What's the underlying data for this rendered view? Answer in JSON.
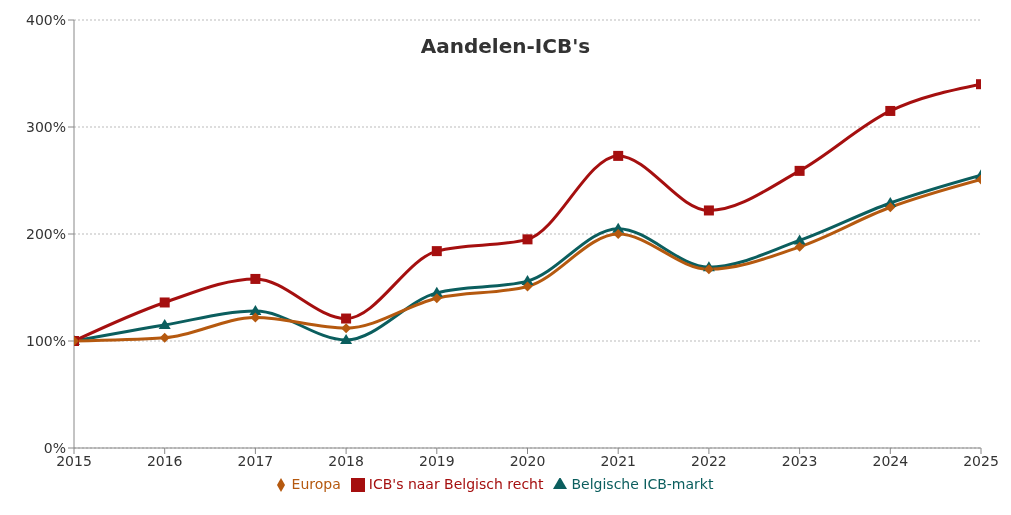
{
  "chart_data": {
    "type": "line",
    "title": "Aandelen-ICB's",
    "x": [
      2015,
      2016,
      2017,
      2018,
      2019,
      2020,
      2021,
      2022,
      2023,
      2024,
      2025
    ],
    "xlim": [
      2015,
      2025
    ],
    "xticks": [
      2015,
      2016,
      2017,
      2018,
      2019,
      2020,
      2021,
      2022,
      2023,
      2024,
      2025
    ],
    "ylim": [
      0,
      400
    ],
    "yticks": [
      {
        "value": 0,
        "label": "0%"
      },
      {
        "value": 100,
        "label": "100%"
      },
      {
        "value": 200,
        "label": "200%"
      },
      {
        "value": 300,
        "label": "300%"
      },
      {
        "value": 400,
        "label": "400%"
      }
    ],
    "grid": "y",
    "legend": "bottom",
    "series": [
      {
        "name": "Europa",
        "color": "#b5590f",
        "marker": "diamond",
        "values": [
          100,
          103,
          122,
          112,
          140,
          151,
          200,
          167,
          188,
          225,
          251
        ]
      },
      {
        "name": "ICB's naar Belgisch recht",
        "color": "#a50f0f",
        "marker": "square",
        "values": [
          100,
          136,
          158,
          121,
          184,
          195,
          273,
          222,
          259,
          315,
          340
        ]
      },
      {
        "name": "Belgische ICB-markt",
        "color": "#0b5e5e",
        "marker": "triangle",
        "values": [
          100,
          115,
          128,
          101,
          145,
          156,
          205,
          169,
          194,
          229,
          255
        ]
      }
    ]
  }
}
